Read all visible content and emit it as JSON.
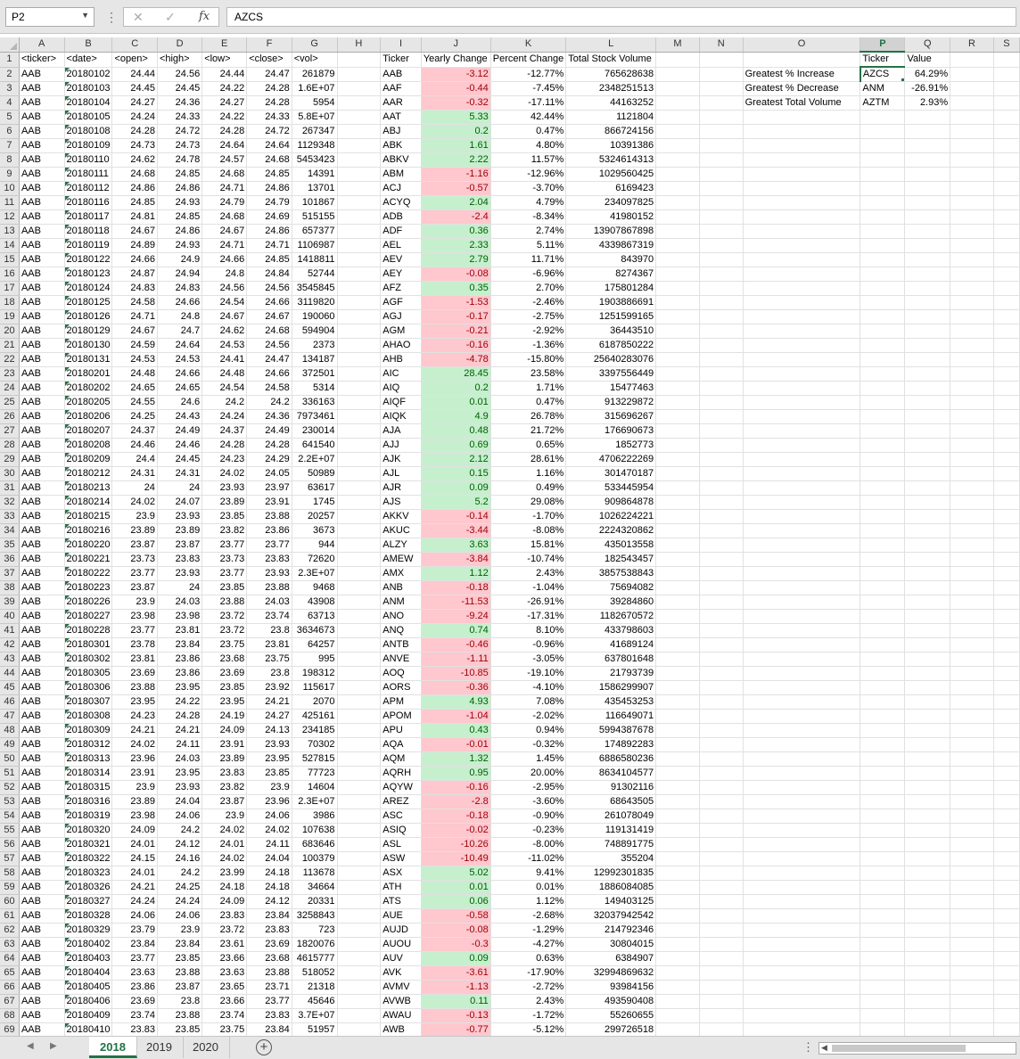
{
  "formula_bar": {
    "name_box": "P2",
    "formula": "AZCS",
    "fx_label": "fx"
  },
  "sheet": {
    "columns": [
      "A",
      "B",
      "C",
      "D",
      "E",
      "F",
      "G",
      "H",
      "I",
      "J",
      "K",
      "L",
      "M",
      "N",
      "O",
      "P",
      "Q",
      "R",
      "S"
    ],
    "selected_column": "P",
    "header_row": [
      "<ticker>",
      "<date>",
      "<open>",
      "<high>",
      "<low>",
      "<close>",
      "<vol>",
      "",
      "Ticker",
      "Yearly Change",
      "Percent Change",
      "Total Stock Volume"
    ],
    "data_rows": [
      [
        "AAB",
        "20180102",
        "24.44",
        "24.56",
        "24.44",
        "24.47",
        "261879",
        "AAB",
        "-3.12",
        "-12.77%",
        "765628638"
      ],
      [
        "AAB",
        "20180103",
        "24.45",
        "24.45",
        "24.22",
        "24.28",
        "1.6E+07",
        "AAF",
        "-0.44",
        "-7.45%",
        "2348251513"
      ],
      [
        "AAB",
        "20180104",
        "24.27",
        "24.36",
        "24.27",
        "24.28",
        "5954",
        "AAR",
        "-0.32",
        "-17.11%",
        "44163252"
      ],
      [
        "AAB",
        "20180105",
        "24.24",
        "24.33",
        "24.22",
        "24.33",
        "5.8E+07",
        "AAT",
        "5.33",
        "42.44%",
        "1121804"
      ],
      [
        "AAB",
        "20180108",
        "24.28",
        "24.72",
        "24.28",
        "24.72",
        "267347",
        "ABJ",
        "0.2",
        "0.47%",
        "866724156"
      ],
      [
        "AAB",
        "20180109",
        "24.73",
        "24.73",
        "24.64",
        "24.64",
        "1129348",
        "ABK",
        "1.61",
        "4.80%",
        "10391386"
      ],
      [
        "AAB",
        "20180110",
        "24.62",
        "24.78",
        "24.57",
        "24.68",
        "5453423",
        "ABKV",
        "2.22",
        "11.57%",
        "5324614313"
      ],
      [
        "AAB",
        "20180111",
        "24.68",
        "24.85",
        "24.68",
        "24.85",
        "14391",
        "ABM",
        "-1.16",
        "-12.96%",
        "1029560425"
      ],
      [
        "AAB",
        "20180112",
        "24.86",
        "24.86",
        "24.71",
        "24.86",
        "13701",
        "ACJ",
        "-0.57",
        "-3.70%",
        "6169423"
      ],
      [
        "AAB",
        "20180116",
        "24.85",
        "24.93",
        "24.79",
        "24.79",
        "101867",
        "ACYQ",
        "2.04",
        "4.79%",
        "234097825"
      ],
      [
        "AAB",
        "20180117",
        "24.81",
        "24.85",
        "24.68",
        "24.69",
        "515155",
        "ADB",
        "-2.4",
        "-8.34%",
        "41980152"
      ],
      [
        "AAB",
        "20180118",
        "24.67",
        "24.86",
        "24.67",
        "24.86",
        "657377",
        "ADF",
        "0.36",
        "2.74%",
        "13907867898"
      ],
      [
        "AAB",
        "20180119",
        "24.89",
        "24.93",
        "24.71",
        "24.71",
        "1106987",
        "AEL",
        "2.33",
        "5.11%",
        "4339867319"
      ],
      [
        "AAB",
        "20180122",
        "24.66",
        "24.9",
        "24.66",
        "24.85",
        "1418811",
        "AEV",
        "2.79",
        "11.71%",
        "843970"
      ],
      [
        "AAB",
        "20180123",
        "24.87",
        "24.94",
        "24.8",
        "24.84",
        "52744",
        "AEY",
        "-0.08",
        "-6.96%",
        "8274367"
      ],
      [
        "AAB",
        "20180124",
        "24.83",
        "24.83",
        "24.56",
        "24.56",
        "3545845",
        "AFZ",
        "0.35",
        "2.70%",
        "175801284"
      ],
      [
        "AAB",
        "20180125",
        "24.58",
        "24.66",
        "24.54",
        "24.66",
        "3119820",
        "AGF",
        "-1.53",
        "-2.46%",
        "1903886691"
      ],
      [
        "AAB",
        "20180126",
        "24.71",
        "24.8",
        "24.67",
        "24.67",
        "190060",
        "AGJ",
        "-0.17",
        "-2.75%",
        "1251599165"
      ],
      [
        "AAB",
        "20180129",
        "24.67",
        "24.7",
        "24.62",
        "24.68",
        "594904",
        "AGM",
        "-0.21",
        "-2.92%",
        "36443510"
      ],
      [
        "AAB",
        "20180130",
        "24.59",
        "24.64",
        "24.53",
        "24.56",
        "2373",
        "AHAO",
        "-0.16",
        "-1.36%",
        "6187850222"
      ],
      [
        "AAB",
        "20180131",
        "24.53",
        "24.53",
        "24.41",
        "24.47",
        "134187",
        "AHB",
        "-4.78",
        "-15.80%",
        "25640283076"
      ],
      [
        "AAB",
        "20180201",
        "24.48",
        "24.66",
        "24.48",
        "24.66",
        "372501",
        "AIC",
        "28.45",
        "23.58%",
        "3397556449"
      ],
      [
        "AAB",
        "20180202",
        "24.65",
        "24.65",
        "24.54",
        "24.58",
        "5314",
        "AIQ",
        "0.2",
        "1.71%",
        "15477463"
      ],
      [
        "AAB",
        "20180205",
        "24.55",
        "24.6",
        "24.2",
        "24.2",
        "336163",
        "AIQF",
        "0.01",
        "0.47%",
        "913229872"
      ],
      [
        "AAB",
        "20180206",
        "24.25",
        "24.43",
        "24.24",
        "24.36",
        "7973461",
        "AIQK",
        "4.9",
        "26.78%",
        "315696267"
      ],
      [
        "AAB",
        "20180207",
        "24.37",
        "24.49",
        "24.37",
        "24.49",
        "230014",
        "AJA",
        "0.48",
        "21.72%",
        "176690673"
      ],
      [
        "AAB",
        "20180208",
        "24.46",
        "24.46",
        "24.28",
        "24.28",
        "641540",
        "AJJ",
        "0.69",
        "0.65%",
        "1852773"
      ],
      [
        "AAB",
        "20180209",
        "24.4",
        "24.45",
        "24.23",
        "24.29",
        "2.2E+07",
        "AJK",
        "2.12",
        "28.61%",
        "4706222269"
      ],
      [
        "AAB",
        "20180212",
        "24.31",
        "24.31",
        "24.02",
        "24.05",
        "50989",
        "AJL",
        "0.15",
        "1.16%",
        "301470187"
      ],
      [
        "AAB",
        "20180213",
        "24",
        "24",
        "23.93",
        "23.97",
        "63617",
        "AJR",
        "0.09",
        "0.49%",
        "533445954"
      ],
      [
        "AAB",
        "20180214",
        "24.02",
        "24.07",
        "23.89",
        "23.91",
        "1745",
        "AJS",
        "5.2",
        "29.08%",
        "909864878"
      ],
      [
        "AAB",
        "20180215",
        "23.9",
        "23.93",
        "23.85",
        "23.88",
        "20257",
        "AKKV",
        "-0.14",
        "-1.70%",
        "1026224221"
      ],
      [
        "AAB",
        "20180216",
        "23.89",
        "23.89",
        "23.82",
        "23.86",
        "3673",
        "AKUC",
        "-3.44",
        "-8.08%",
        "2224320862"
      ],
      [
        "AAB",
        "20180220",
        "23.87",
        "23.87",
        "23.77",
        "23.77",
        "944",
        "ALZY",
        "3.63",
        "15.81%",
        "435013558"
      ],
      [
        "AAB",
        "20180221",
        "23.73",
        "23.83",
        "23.73",
        "23.83",
        "72620",
        "AMEW",
        "-3.84",
        "-10.74%",
        "182543457"
      ],
      [
        "AAB",
        "20180222",
        "23.77",
        "23.93",
        "23.77",
        "23.93",
        "2.3E+07",
        "AMX",
        "1.12",
        "2.43%",
        "3857538843"
      ],
      [
        "AAB",
        "20180223",
        "23.87",
        "24",
        "23.85",
        "23.88",
        "9468",
        "ANB",
        "-0.18",
        "-1.04%",
        "75694082"
      ],
      [
        "AAB",
        "20180226",
        "23.9",
        "24.03",
        "23.88",
        "24.03",
        "43908",
        "ANM",
        "-11.53",
        "-26.91%",
        "39284860"
      ],
      [
        "AAB",
        "20180227",
        "23.98",
        "23.98",
        "23.72",
        "23.74",
        "63713",
        "ANO",
        "-9.24",
        "-17.31%",
        "1182670572"
      ],
      [
        "AAB",
        "20180228",
        "23.77",
        "23.81",
        "23.72",
        "23.8",
        "3634673",
        "ANQ",
        "0.74",
        "8.10%",
        "433798603"
      ],
      [
        "AAB",
        "20180301",
        "23.78",
        "23.84",
        "23.75",
        "23.81",
        "64257",
        "ANTB",
        "-0.46",
        "-0.96%",
        "41689124"
      ],
      [
        "AAB",
        "20180302",
        "23.81",
        "23.86",
        "23.68",
        "23.75",
        "995",
        "ANVE",
        "-1.11",
        "-3.05%",
        "637801648"
      ],
      [
        "AAB",
        "20180305",
        "23.69",
        "23.86",
        "23.69",
        "23.8",
        "198312",
        "AOQ",
        "-10.85",
        "-19.10%",
        "21793739"
      ],
      [
        "AAB",
        "20180306",
        "23.88",
        "23.95",
        "23.85",
        "23.92",
        "115617",
        "AORS",
        "-0.36",
        "-4.10%",
        "1586299907"
      ],
      [
        "AAB",
        "20180307",
        "23.95",
        "24.22",
        "23.95",
        "24.21",
        "2070",
        "APM",
        "4.93",
        "7.08%",
        "435453253"
      ],
      [
        "AAB",
        "20180308",
        "24.23",
        "24.28",
        "24.19",
        "24.27",
        "425161",
        "APOM",
        "-1.04",
        "-2.02%",
        "116649071"
      ],
      [
        "AAB",
        "20180309",
        "24.21",
        "24.21",
        "24.09",
        "24.13",
        "234185",
        "APU",
        "0.43",
        "0.94%",
        "5994387678"
      ],
      [
        "AAB",
        "20180312",
        "24.02",
        "24.11",
        "23.91",
        "23.93",
        "70302",
        "AQA",
        "-0.01",
        "-0.32%",
        "174892283"
      ],
      [
        "AAB",
        "20180313",
        "23.96",
        "24.03",
        "23.89",
        "23.95",
        "527815",
        "AQM",
        "1.32",
        "1.45%",
        "6886580236"
      ],
      [
        "AAB",
        "20180314",
        "23.91",
        "23.95",
        "23.83",
        "23.85",
        "77723",
        "AQRH",
        "0.95",
        "20.00%",
        "8634104577"
      ],
      [
        "AAB",
        "20180315",
        "23.9",
        "23.93",
        "23.82",
        "23.9",
        "14604",
        "AQYW",
        "-0.16",
        "-2.95%",
        "91302116"
      ],
      [
        "AAB",
        "20180316",
        "23.89",
        "24.04",
        "23.87",
        "23.96",
        "2.3E+07",
        "AREZ",
        "-2.8",
        "-3.60%",
        "68643505"
      ],
      [
        "AAB",
        "20180319",
        "23.98",
        "24.06",
        "23.9",
        "24.06",
        "3986",
        "ASC",
        "-0.18",
        "-0.90%",
        "261078049"
      ],
      [
        "AAB",
        "20180320",
        "24.09",
        "24.2",
        "24.02",
        "24.02",
        "107638",
        "ASIQ",
        "-0.02",
        "-0.23%",
        "119131419"
      ],
      [
        "AAB",
        "20180321",
        "24.01",
        "24.12",
        "24.01",
        "24.11",
        "683646",
        "ASL",
        "-10.26",
        "-8.00%",
        "748891775"
      ],
      [
        "AAB",
        "20180322",
        "24.15",
        "24.16",
        "24.02",
        "24.04",
        "100379",
        "ASW",
        "-10.49",
        "-11.02%",
        "355204"
      ],
      [
        "AAB",
        "20180323",
        "24.01",
        "24.2",
        "23.99",
        "24.18",
        "113678",
        "ASX",
        "5.02",
        "9.41%",
        "12992301835"
      ],
      [
        "AAB",
        "20180326",
        "24.21",
        "24.25",
        "24.18",
        "24.18",
        "34664",
        "ATH",
        "0.01",
        "0.01%",
        "1886084085"
      ],
      [
        "AAB",
        "20180327",
        "24.24",
        "24.24",
        "24.09",
        "24.12",
        "20331",
        "ATS",
        "0.06",
        "1.12%",
        "149403125"
      ],
      [
        "AAB",
        "20180328",
        "24.06",
        "24.06",
        "23.83",
        "23.84",
        "3258843",
        "AUE",
        "-0.58",
        "-2.68%",
        "32037942542"
      ],
      [
        "AAB",
        "20180329",
        "23.79",
        "23.9",
        "23.72",
        "23.83",
        "723",
        "AUJD",
        "-0.08",
        "-1.29%",
        "214792346"
      ],
      [
        "AAB",
        "20180402",
        "23.84",
        "23.84",
        "23.61",
        "23.69",
        "1820076",
        "AUOU",
        "-0.3",
        "-4.27%",
        "30804015"
      ],
      [
        "AAB",
        "20180403",
        "23.77",
        "23.85",
        "23.66",
        "23.68",
        "4615777",
        "AUV",
        "0.09",
        "0.63%",
        "6384907"
      ],
      [
        "AAB",
        "20180404",
        "23.63",
        "23.88",
        "23.63",
        "23.88",
        "518052",
        "AVK",
        "-3.61",
        "-17.90%",
        "32994869632"
      ],
      [
        "AAB",
        "20180405",
        "23.86",
        "23.87",
        "23.65",
        "23.71",
        "21318",
        "AVMV",
        "-1.13",
        "-2.72%",
        "93984156"
      ],
      [
        "AAB",
        "20180406",
        "23.69",
        "23.8",
        "23.66",
        "23.77",
        "45646",
        "AVWB",
        "0.11",
        "2.43%",
        "493590408"
      ],
      [
        "AAB",
        "20180409",
        "23.74",
        "23.88",
        "23.74",
        "23.83",
        "3.7E+07",
        "AWAU",
        "-0.13",
        "-1.72%",
        "55260655"
      ],
      [
        "AAB",
        "20180410",
        "23.83",
        "23.85",
        "23.75",
        "23.84",
        "51957",
        "AWB",
        "-0.77",
        "-5.12%",
        "299726518"
      ]
    ],
    "summary": {
      "header_ticker": "Ticker",
      "header_value": "Value",
      "rows": [
        {
          "label": "Greatest % Increase",
          "ticker": "AZCS",
          "value": "64.29%"
        },
        {
          "label": "Greatest % Decrease",
          "ticker": "ANM",
          "value": "-26.91%"
        },
        {
          "label": "Greatest Total Volume",
          "ticker": "AZTM",
          "value": "2.93%"
        }
      ]
    }
  },
  "tabs": [
    {
      "label": "2018",
      "active": true
    },
    {
      "label": "2019",
      "active": false
    },
    {
      "label": "2020",
      "active": false
    }
  ],
  "colors": {
    "excel_green": "#217346",
    "positive_fill": "#c6efce",
    "negative_fill": "#ffc7ce"
  }
}
